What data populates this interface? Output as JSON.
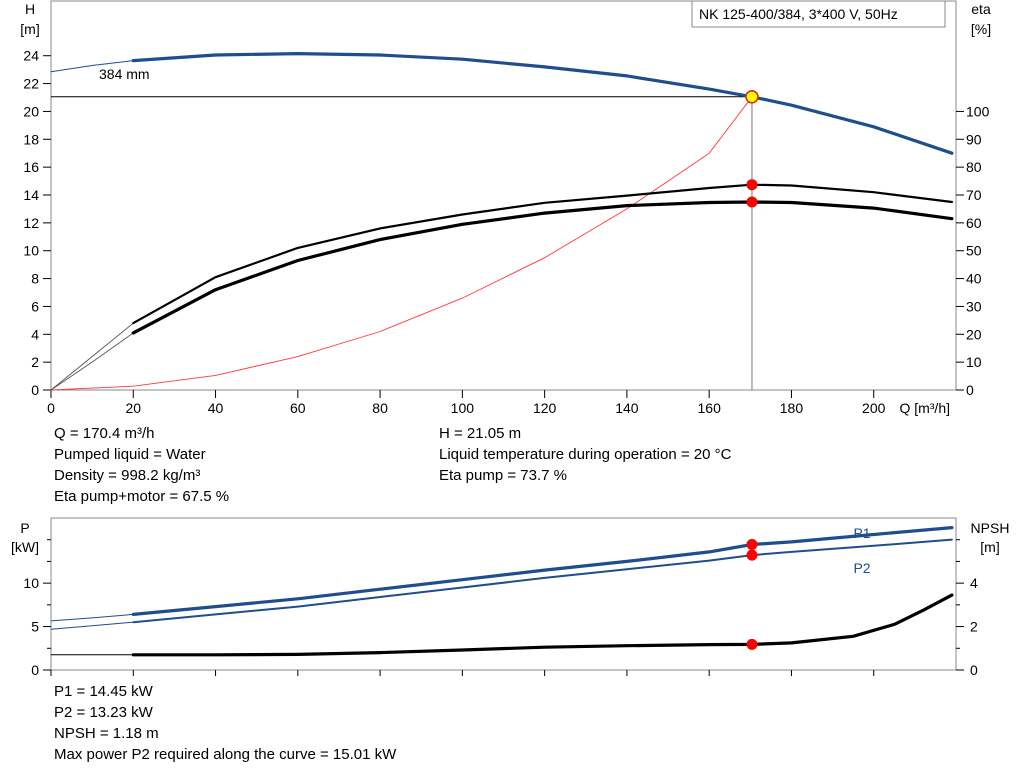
{
  "title": "NK 125-400/384, 3*400 V, 50Hz",
  "colors": {
    "curve_blue": "#1f4e8c",
    "marker_red": "#ff0000",
    "marker_yellow": "#ffff00",
    "system_curve": "#ff3b3b"
  },
  "chart_data": [
    {
      "type": "line",
      "name": "head-efficiency",
      "ylabel_left": "H\n[m]",
      "ylabel_right": "eta\n[%]",
      "xlabel": "Q [m³/h]",
      "xlim": [
        0,
        220
      ],
      "ylim_left": [
        0,
        28
      ],
      "ylim_right": [
        0,
        140
      ],
      "x_ticks": [
        0,
        20,
        40,
        60,
        80,
        100,
        120,
        140,
        160,
        180,
        200
      ],
      "y_left_ticks": [
        0,
        2,
        4,
        6,
        8,
        10,
        12,
        14,
        16,
        18,
        20,
        22,
        24
      ],
      "y_right_ticks": [
        0,
        10,
        20,
        30,
        40,
        50,
        60,
        70,
        80,
        90,
        100
      ],
      "impeller_label": "384 mm",
      "head_curve": {
        "x": [
          20,
          40,
          60,
          80,
          100,
          120,
          140,
          160,
          170.4,
          180,
          200,
          219
        ],
        "y": [
          23.65,
          24.05,
          24.15,
          24.05,
          23.75,
          23.2,
          22.55,
          21.6,
          21.05,
          20.45,
          18.9,
          17.0
        ]
      },
      "head_ext": {
        "x": [
          0,
          10,
          20
        ],
        "y": [
          22.85,
          23.3,
          23.65
        ]
      },
      "eta_pump": {
        "x": [
          20,
          40,
          60,
          80,
          100,
          120,
          140,
          160,
          170.4,
          180,
          200,
          219
        ],
        "y": [
          24,
          40.5,
          51,
          58,
          63,
          67.2,
          69.8,
          72.5,
          73.7,
          73.4,
          71,
          67.5
        ]
      },
      "eta_pump_ext": {
        "x": [
          0,
          10,
          20
        ],
        "y": [
          0,
          12,
          24
        ]
      },
      "eta_pump_motor": {
        "x": [
          20,
          40,
          60,
          80,
          100,
          120,
          140,
          160,
          170.4,
          180,
          200,
          219
        ],
        "y": [
          20.5,
          36,
          46.5,
          54,
          59.5,
          63.5,
          66.2,
          67.3,
          67.5,
          67.3,
          65.3,
          61.5
        ]
      },
      "eta_pump_motor_ext": {
        "x": [
          0,
          10,
          20
        ],
        "y": [
          0,
          10,
          20.5
        ]
      },
      "system_curve": {
        "x": [
          0,
          20,
          40,
          60,
          80,
          100,
          120,
          140,
          160,
          170.4
        ],
        "y": [
          0,
          0.27,
          1.05,
          2.4,
          4.2,
          6.6,
          9.5,
          13.0,
          17.0,
          21.05
        ]
      },
      "duty_point": {
        "q": 170.4,
        "h": 21.05,
        "eta_pump": 73.7,
        "eta_pump_motor": 67.5
      }
    },
    {
      "type": "line",
      "name": "power-npsh",
      "ylabel_left": "P\n[kW]",
      "ylabel_right": "NPSH\n[m]",
      "xlim": [
        0,
        220
      ],
      "ylim_left": [
        0,
        17.5
      ],
      "ylim_right": [
        0,
        7
      ],
      "y_left_ticks": [
        0,
        5,
        10
      ],
      "y_right_ticks": [
        0,
        2,
        4
      ],
      "series_labels": [
        "P1",
        "P2"
      ],
      "p1": {
        "x": [
          20,
          40,
          60,
          80,
          100,
          120,
          140,
          160,
          170.4,
          180,
          200,
          219
        ],
        "y": [
          6.4,
          7.3,
          8.2,
          9.3,
          10.4,
          11.5,
          12.5,
          13.6,
          14.45,
          14.75,
          15.6,
          16.4
        ]
      },
      "p1_ext": {
        "x": [
          0,
          10,
          20
        ],
        "y": [
          5.65,
          6.0,
          6.4
        ]
      },
      "p2": {
        "x": [
          20,
          40,
          60,
          80,
          100,
          120,
          140,
          160,
          170.4,
          180,
          200,
          219
        ],
        "y": [
          5.5,
          6.4,
          7.3,
          8.4,
          9.5,
          10.6,
          11.6,
          12.6,
          13.23,
          13.6,
          14.3,
          15.01
        ]
      },
      "p2_ext": {
        "x": [
          0,
          10,
          20
        ],
        "y": [
          4.7,
          5.1,
          5.5
        ]
      },
      "npsh": {
        "x": [
          20,
          40,
          60,
          80,
          100,
          120,
          140,
          160,
          170.4,
          180,
          195,
          205,
          212,
          219
        ],
        "y": [
          0.7,
          0.7,
          0.72,
          0.8,
          0.92,
          1.05,
          1.12,
          1.17,
          1.18,
          1.25,
          1.55,
          2.1,
          2.75,
          3.45
        ]
      },
      "npsh_ext": {
        "x": [
          0,
          20
        ],
        "y": [
          0.7,
          0.7
        ]
      },
      "duty_point": {
        "q": 170.4,
        "p1": 14.45,
        "p2": 13.23,
        "npsh": 1.18
      }
    }
  ],
  "info_top_left": [
    "Q = 170.4 m³/h",
    "Pumped liquid = Water",
    "Density = 998.2 kg/m³",
    "Eta pump+motor = 67.5 %"
  ],
  "info_top_right": [
    "H = 21.05 m",
    "Liquid temperature during operation = 20 °C",
    "Eta pump = 73.7 %"
  ],
  "info_bottom": [
    "P1 = 14.45 kW",
    "P2 = 13.23 kW",
    "NPSH = 1.18 m",
    "Max power P2 required along the curve = 15.01 kW"
  ]
}
